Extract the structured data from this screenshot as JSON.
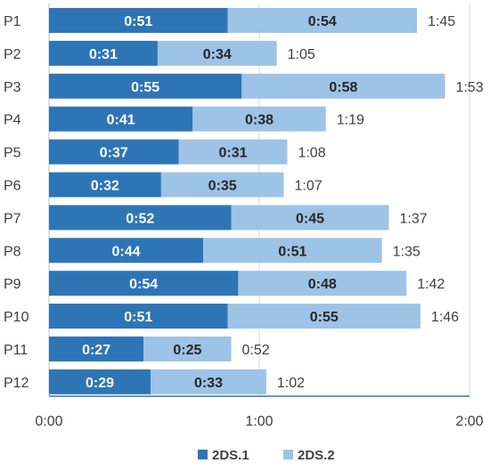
{
  "chart_data": {
    "type": "bar",
    "orientation": "horizontal",
    "stacked": true,
    "categories": [
      "P1",
      "P2",
      "P3",
      "P4",
      "P5",
      "P6",
      "P7",
      "P8",
      "P9",
      "P10",
      "P11",
      "P12"
    ],
    "series": [
      {
        "name": "2DS.1",
        "color": "#2e75b6",
        "values_seconds": [
          51,
          31,
          55,
          41,
          37,
          32,
          52,
          44,
          54,
          51,
          27,
          29
        ],
        "labels": [
          "0:51",
          "0:31",
          "0:55",
          "0:41",
          "0:37",
          "0:32",
          "0:52",
          "0:44",
          "0:54",
          "0:51",
          "0:27",
          "0:29"
        ]
      },
      {
        "name": "2DS.2",
        "color": "#9dc3e6",
        "values_seconds": [
          54,
          34,
          58,
          38,
          31,
          35,
          45,
          51,
          48,
          55,
          25,
          33
        ],
        "labels": [
          "0:54",
          "0:34",
          "0:58",
          "0:38",
          "0:31",
          "0:35",
          "0:45",
          "0:51",
          "0:48",
          "0:55",
          "0:25",
          "0:33"
        ]
      }
    ],
    "totals": [
      "1:45",
      "1:05",
      "1:53",
      "1:19",
      "1:08",
      "1:07",
      "1:37",
      "1:35",
      "1:42",
      "1:46",
      "0:52",
      "1:02"
    ],
    "x_ticks": [
      "0:00",
      "1:00",
      "2:00"
    ],
    "x_tick_values_seconds": [
      0,
      60,
      120
    ],
    "xlim_seconds": [
      0,
      120
    ],
    "grid": true,
    "legend_position": "bottom",
    "title": "",
    "xlabel": "",
    "ylabel": ""
  }
}
